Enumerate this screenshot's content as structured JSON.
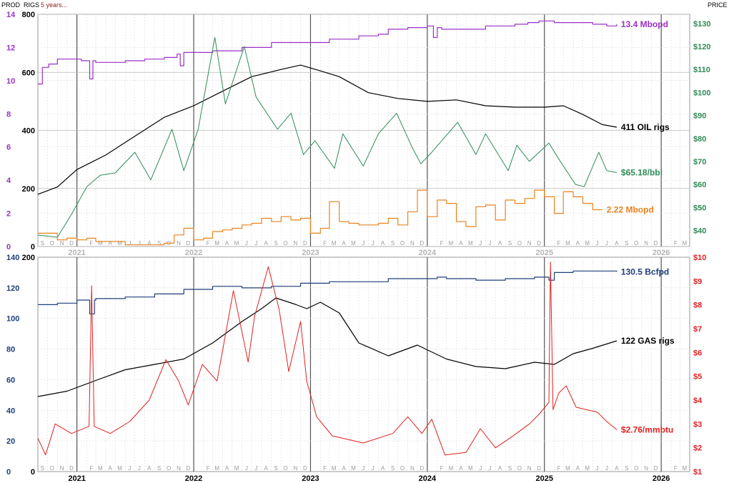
{
  "header": {
    "prod_label": "PROD",
    "rigs_label": "RIGS",
    "period_label": "5 years...",
    "price_label": "PRICE"
  },
  "colors": {
    "purple": "#9b30c8",
    "green": "#2e8b57",
    "black": "#000000",
    "orange": "#e8821e",
    "navy": "#1f3f7a",
    "red": "#e02020",
    "grid": "#bdbdbd",
    "year_line": "#555555"
  },
  "x_axis": {
    "years": [
      "2021",
      "2022",
      "2023",
      "2024",
      "2025",
      "2026"
    ],
    "month_letters": [
      "J",
      "F",
      "M",
      "A",
      "M",
      "J",
      "J",
      "A",
      "S",
      "O",
      "N",
      "D"
    ],
    "start": "2020-09-01",
    "end": "2026-03-31"
  },
  "chart_data": [
    {
      "type": "line",
      "panel": "oil",
      "axes": {
        "prod_left": {
          "ticks": [
            "0",
            "2",
            "4",
            "6",
            "8",
            "10",
            "12",
            "14"
          ],
          "ylim": [
            0,
            14
          ]
        },
        "rigs_left": {
          "ticks": [
            "0",
            "200",
            "400",
            "600",
            "800"
          ],
          "ylim": [
            0,
            800
          ]
        },
        "price_right": {
          "ticks": [
            "$40",
            "$50",
            "$60",
            "$70",
            "$80",
            "$90",
            "$100",
            "$110",
            "$120",
            "$130"
          ],
          "ylim": [
            33,
            134
          ]
        }
      },
      "series": [
        {
          "key": "oil_prod",
          "axis": "prod",
          "color": "#9b30c8",
          "label": "13.4 Mbopd",
          "x": [
            "2020-09-01",
            "2020-09-15",
            "2020-10-05",
            "2020-11-01",
            "2020-12-15",
            "2021-01-15",
            "2021-02-10",
            "2021-02-20",
            "2021-03-01",
            "2021-06-01",
            "2021-08-01",
            "2021-10-01",
            "2021-11-10",
            "2021-11-20",
            "2021-12-01",
            "2022-03-01",
            "2022-06-01",
            "2022-09-01",
            "2022-12-01",
            "2023-03-01",
            "2023-06-01",
            "2023-08-01",
            "2023-09-01",
            "2023-11-01",
            "2024-01-01",
            "2024-01-20",
            "2024-02-01",
            "2024-02-15",
            "2024-04-01",
            "2024-07-01",
            "2024-10-01",
            "2024-11-10",
            "2024-12-15",
            "2025-02-01",
            "2025-04-01",
            "2025-06-01",
            "2025-07-15",
            "2025-08-15"
          ],
          "y": [
            9.8,
            10.8,
            11.0,
            11.3,
            11.3,
            11.2,
            10.1,
            11.2,
            11.1,
            11.2,
            11.3,
            11.4,
            11.6,
            10.9,
            11.7,
            11.8,
            12.0,
            12.3,
            12.3,
            12.5,
            12.7,
            12.8,
            13.1,
            13.2,
            13.3,
            12.6,
            13.2,
            13.1,
            13.1,
            13.3,
            13.4,
            13.5,
            13.6,
            13.5,
            13.5,
            13.4,
            13.3,
            13.4
          ]
        },
        {
          "key": "oil_rigs",
          "axis": "rigs",
          "color": "#000000",
          "label": "411 OIL rigs",
          "x": [
            "2020-09-01",
            "2020-11-01",
            "2021-01-01",
            "2021-04-01",
            "2021-07-01",
            "2021-10-01",
            "2022-01-01",
            "2022-04-01",
            "2022-07-01",
            "2022-10-01",
            "2022-12-01",
            "2023-02-01",
            "2023-04-01",
            "2023-07-01",
            "2023-10-01",
            "2024-01-01",
            "2024-04-01",
            "2024-07-01",
            "2024-10-01",
            "2025-01-01",
            "2025-03-01",
            "2025-05-01",
            "2025-07-01",
            "2025-08-15"
          ],
          "y": [
            180,
            205,
            265,
            315,
            380,
            445,
            485,
            535,
            585,
            610,
            625,
            605,
            585,
            530,
            510,
            500,
            505,
            485,
            480,
            480,
            485,
            455,
            420,
            411
          ]
        },
        {
          "key": "oil_price",
          "axis": "price",
          "color": "#2e8b57",
          "label": "$65.18/bbl",
          "x": [
            "2020-09-01",
            "2020-11-01",
            "2020-12-15",
            "2021-02-01",
            "2021-03-15",
            "2021-05-01",
            "2021-07-01",
            "2021-08-20",
            "2021-10-25",
            "2021-12-01",
            "2022-01-15",
            "2022-03-08",
            "2022-04-10",
            "2022-06-08",
            "2022-07-15",
            "2022-09-20",
            "2022-11-01",
            "2022-12-10",
            "2023-01-15",
            "2023-03-17",
            "2023-04-12",
            "2023-06-15",
            "2023-08-01",
            "2023-09-27",
            "2023-11-15",
            "2023-12-12",
            "2024-01-15",
            "2024-04-05",
            "2024-06-01",
            "2024-07-01",
            "2024-09-10",
            "2024-10-07",
            "2024-11-15",
            "2025-01-15",
            "2025-02-15",
            "2025-04-08",
            "2025-05-05",
            "2025-06-20",
            "2025-07-15",
            "2025-08-15"
          ],
          "y": [
            38,
            37,
            47,
            59,
            64,
            65,
            74,
            62,
            84,
            66,
            84,
            124,
            95,
            120,
            98,
            84,
            91,
            73,
            79,
            67,
            82,
            68,
            82,
            91,
            76,
            69,
            74,
            87,
            73,
            82,
            66,
            77,
            70,
            78,
            71,
            60,
            59,
            74,
            66,
            65.18
          ]
        },
        {
          "key": "gom_prod",
          "axis": "prod",
          "color": "#e8821e",
          "label": "2.22 Mbopd",
          "x": [
            "2020-09-01",
            "2020-10-01",
            "2020-11-01",
            "2020-12-01",
            "2021-01-01",
            "2021-02-01",
            "2021-03-01",
            "2021-06-01",
            "2021-09-01",
            "2021-10-01",
            "2021-11-01",
            "2021-12-01",
            "2022-01-01",
            "2022-02-01",
            "2022-03-01",
            "2022-04-01",
            "2022-05-01",
            "2022-06-01",
            "2022-07-01",
            "2022-08-01",
            "2022-09-01",
            "2022-10-01",
            "2022-11-01",
            "2022-12-01",
            "2023-01-01",
            "2023-02-01",
            "2023-03-01",
            "2023-04-01",
            "2023-05-01",
            "2023-06-01",
            "2023-07-01",
            "2023-08-01",
            "2023-09-01",
            "2023-10-01",
            "2023-11-01",
            "2023-12-01",
            "2024-01-01",
            "2024-02-01",
            "2024-03-01",
            "2024-04-01",
            "2024-05-01",
            "2024-06-01",
            "2024-07-01",
            "2024-08-01",
            "2024-09-01",
            "2024-10-01",
            "2024-11-01",
            "2024-12-01",
            "2025-01-01",
            "2025-02-01",
            "2025-03-01",
            "2025-04-01",
            "2025-05-01",
            "2025-06-01",
            "2025-07-01"
          ],
          "y": [
            0.8,
            0.8,
            0.4,
            0.5,
            0.4,
            0.5,
            0.3,
            0.1,
            0.1,
            0.2,
            0.7,
            1.1,
            0.4,
            0.5,
            0.9,
            1.0,
            1.1,
            1.3,
            1.4,
            1.7,
            1.5,
            1.8,
            1.6,
            1.7,
            0.8,
            1.1,
            2.7,
            1.5,
            1.4,
            1.3,
            1.3,
            1.4,
            1.7,
            1.3,
            2.1,
            3.4,
            1.8,
            2.8,
            2.6,
            1.5,
            1.2,
            2.4,
            2.5,
            1.6,
            2.8,
            2.6,
            2.9,
            3.4,
            3.0,
            2.0,
            3.3,
            3.0,
            2.6,
            2.22,
            2.22
          ]
        }
      ]
    },
    {
      "type": "line",
      "panel": "gas",
      "axes": {
        "prod_left": {
          "ticks": [
            "0",
            "20",
            "40",
            "60",
            "80",
            "100",
            "120",
            "140"
          ],
          "ylim": [
            0,
            140
          ]
        },
        "rigs_left": {
          "ticks": [
            "0",
            "200"
          ],
          "ylim": [
            0,
            200
          ]
        },
        "price_right": {
          "ticks": [
            "$1",
            "$2",
            "$3",
            "$4",
            "$5",
            "$6",
            "$7",
            "$8",
            "$9",
            "$10"
          ],
          "ylim": [
            1,
            10
          ]
        }
      },
      "series": [
        {
          "key": "gas_prod",
          "axis": "prod",
          "color": "#1f3f7a",
          "label": "130.5 Bcfpd",
          "x": [
            "2020-09-01",
            "2020-11-01",
            "2021-01-01",
            "2021-02-10",
            "2021-02-25",
            "2021-03-01",
            "2021-06-01",
            "2021-09-01",
            "2021-12-01",
            "2022-03-01",
            "2022-06-01",
            "2022-09-01",
            "2022-12-01",
            "2023-03-01",
            "2023-06-01",
            "2023-09-01",
            "2023-12-01",
            "2024-02-01",
            "2024-03-01",
            "2024-06-01",
            "2024-09-01",
            "2024-12-01",
            "2025-01-15",
            "2025-02-01",
            "2025-04-01",
            "2025-06-01",
            "2025-08-15"
          ],
          "y": [
            109,
            110,
            112,
            103,
            112,
            113,
            114,
            116,
            119,
            121,
            120,
            121,
            123,
            124,
            124,
            126,
            126,
            127,
            126,
            125,
            126,
            127,
            125,
            130,
            131,
            131,
            130.5
          ]
        },
        {
          "key": "gas_rigs",
          "axis": "rigs",
          "color": "#000000",
          "label": "122 GAS rigs",
          "x": [
            "2020-09-01",
            "2020-12-01",
            "2021-03-01",
            "2021-06-01",
            "2021-09-01",
            "2021-12-01",
            "2022-03-01",
            "2022-06-01",
            "2022-08-01",
            "2022-09-15",
            "2022-11-15",
            "2022-12-20",
            "2023-02-01",
            "2023-04-01",
            "2023-06-01",
            "2023-09-01",
            "2023-12-01",
            "2024-03-01",
            "2024-06-01",
            "2024-09-01",
            "2024-12-01",
            "2025-02-01",
            "2025-04-01",
            "2025-06-01",
            "2025-08-15"
          ],
          "y": [
            70,
            75,
            85,
            95,
            100,
            105,
            120,
            140,
            152,
            162,
            156,
            152,
            158,
            148,
            120,
            108,
            118,
            105,
            98,
            96,
            102,
            100,
            110,
            115,
            122
          ]
        },
        {
          "key": "gas_price",
          "axis": "price",
          "color": "#e02020",
          "label": "$2.76/mmbtu",
          "x": [
            "2020-09-01",
            "2020-09-25",
            "2020-10-25",
            "2020-12-15",
            "2021-02-08",
            "2021-02-16",
            "2021-02-24",
            "2021-04-15",
            "2021-06-15",
            "2021-08-15",
            "2021-10-06",
            "2021-11-15",
            "2021-12-15",
            "2022-01-28",
            "2022-03-15",
            "2022-05-05",
            "2022-06-20",
            "2022-07-10",
            "2022-08-22",
            "2022-09-25",
            "2022-10-25",
            "2022-12-01",
            "2022-12-20",
            "2023-01-20",
            "2023-03-10",
            "2023-06-15",
            "2023-09-15",
            "2023-11-01",
            "2023-12-15",
            "2024-01-15",
            "2024-02-25",
            "2024-05-01",
            "2024-06-15",
            "2024-08-01",
            "2024-09-15",
            "2024-11-15",
            "2024-12-15",
            "2025-01-15",
            "2025-01-20",
            "2025-01-28",
            "2025-02-15",
            "2025-03-10",
            "2025-04-10",
            "2025-06-15",
            "2025-07-15",
            "2025-08-15"
          ],
          "y": [
            2.4,
            1.7,
            3.0,
            2.6,
            2.9,
            8.8,
            2.9,
            2.6,
            3.1,
            4.0,
            5.7,
            4.8,
            3.8,
            5.5,
            4.8,
            8.6,
            5.6,
            7.5,
            9.6,
            7.8,
            5.2,
            7.3,
            4.8,
            3.3,
            2.5,
            2.2,
            2.6,
            3.3,
            2.6,
            3.2,
            1.7,
            1.8,
            2.8,
            2.0,
            2.4,
            3.0,
            3.4,
            3.9,
            9.8,
            3.6,
            4.3,
            4.6,
            3.7,
            3.5,
            3.1,
            2.76
          ]
        }
      ]
    }
  ]
}
